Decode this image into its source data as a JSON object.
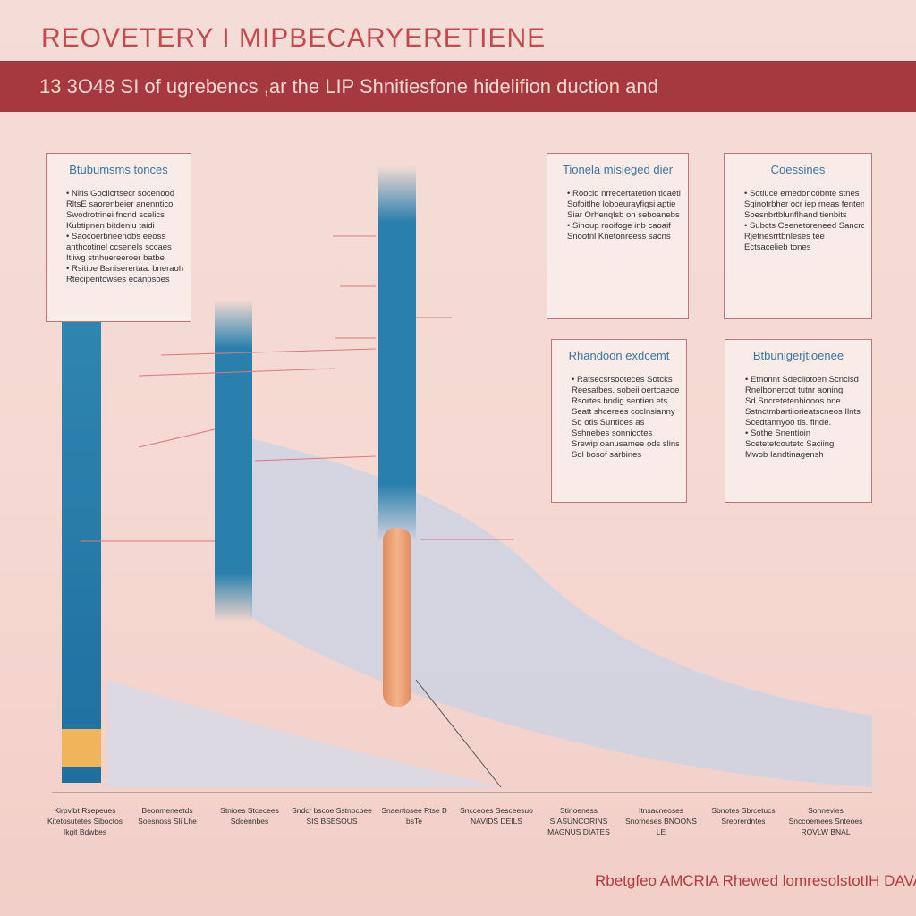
{
  "header": {
    "title": "REOVETERY I MIPBECARYERETIENE",
    "subtitle": "13 3O48 SI of ugrebencs ,ar the LIP Shnitiesfone hidelifion duction and"
  },
  "boxes": [
    {
      "title": "Btubumsms tonces",
      "lines": [
        "• Nitis Gociicrtsecr socenood",
        "RltsE saorenbeier anenntico",
        "Swodrotrinei fncnd scelics",
        "Kubtipnen bitdeniu taidi",
        "• Saocoerbrieenobs eeoss",
        "anthcotinel ccsenels sccaes",
        "Itiiwg stnhuereeroer batbe",
        "• Rsitipe Bsniserertaa: bneraohi",
        "Rtecipentowses ecanpsoes"
      ]
    },
    {
      "title": "Tionela misieged dier",
      "lines": [
        "• Roocid nrrecertatetion ticaetlares",
        "Sofoitlhe loboeurayfigsi aptie",
        "Siar Orhenqlsb on seboanebs",
        "• Sinoup rooifoge inb caoaif",
        "Snootnl Knetonreess sacns"
      ]
    },
    {
      "title": "Coessines",
      "lines": [
        "• Sotiuce emedoncobnte stnes",
        "Sqinotrbher ocr iep meas fentenes",
        "Soesnbrtblunflhand tienbits",
        "• Subcts Ceenetoreneed Sancrot",
        "Rjetnesrrtbnleses tee",
        "Ectsacelieb tones"
      ]
    },
    {
      "title": "Rhandoon exdcemt",
      "lines": [
        "• Ratsecsrsooteces Sotcks",
        "Reesafbes. sobeii oertcaeoel",
        "Rsortes bndig sentien ets",
        "Seatt shcerees coclnsianny",
        "Sd otis Suntioes as",
        "Sshnebes sonnicotes",
        "Srewip oanusamee ods slins",
        "Sdl bosof sarbines"
      ]
    },
    {
      "title": "Btbunigerjtioenee",
      "lines": [
        "• Etnonnt Sdeciiotoen Scncisd",
        "Rnelbonercot tutnr aoning",
        "Sd Sncretetenbiooos bne",
        "Sstnctmbartiiorieatscneos Ilnts",
        "Scedtannyoo tis. finde.",
        "• Sothe Snentioin",
        "Scetetetcoutetc Saciing",
        "Mwob Iandtinagensh"
      ]
    }
  ],
  "axis_labels": [
    "Kirpvlbt Rsepeues Kitetosutetes Siboctos Ikgit Bdwbes",
    "Beonmeneetds Soesnoss Sli Lhe",
    "Stnioes Stcecees Sdcennbes",
    "Sndcr bscoe Sstnocbee SIS BSESOUS",
    "Snaentosee Rtse B bsTe",
    "Sncceoes Sesceesuo NAVIDS DEILS",
    "Stinoeness SIASUNCORINS MAGNUS DIATES",
    "Itnsacneoses Snorneses BNOONS LE",
    "Sbnotes Sbrcetucs Sreorerdntes",
    "Sonnevies Snccoemees Snteoes ROVLW BNAL"
  ],
  "footer": "Rbetgfeo AMCRIA Rhewed lomresolstotIH DAVAG"
}
